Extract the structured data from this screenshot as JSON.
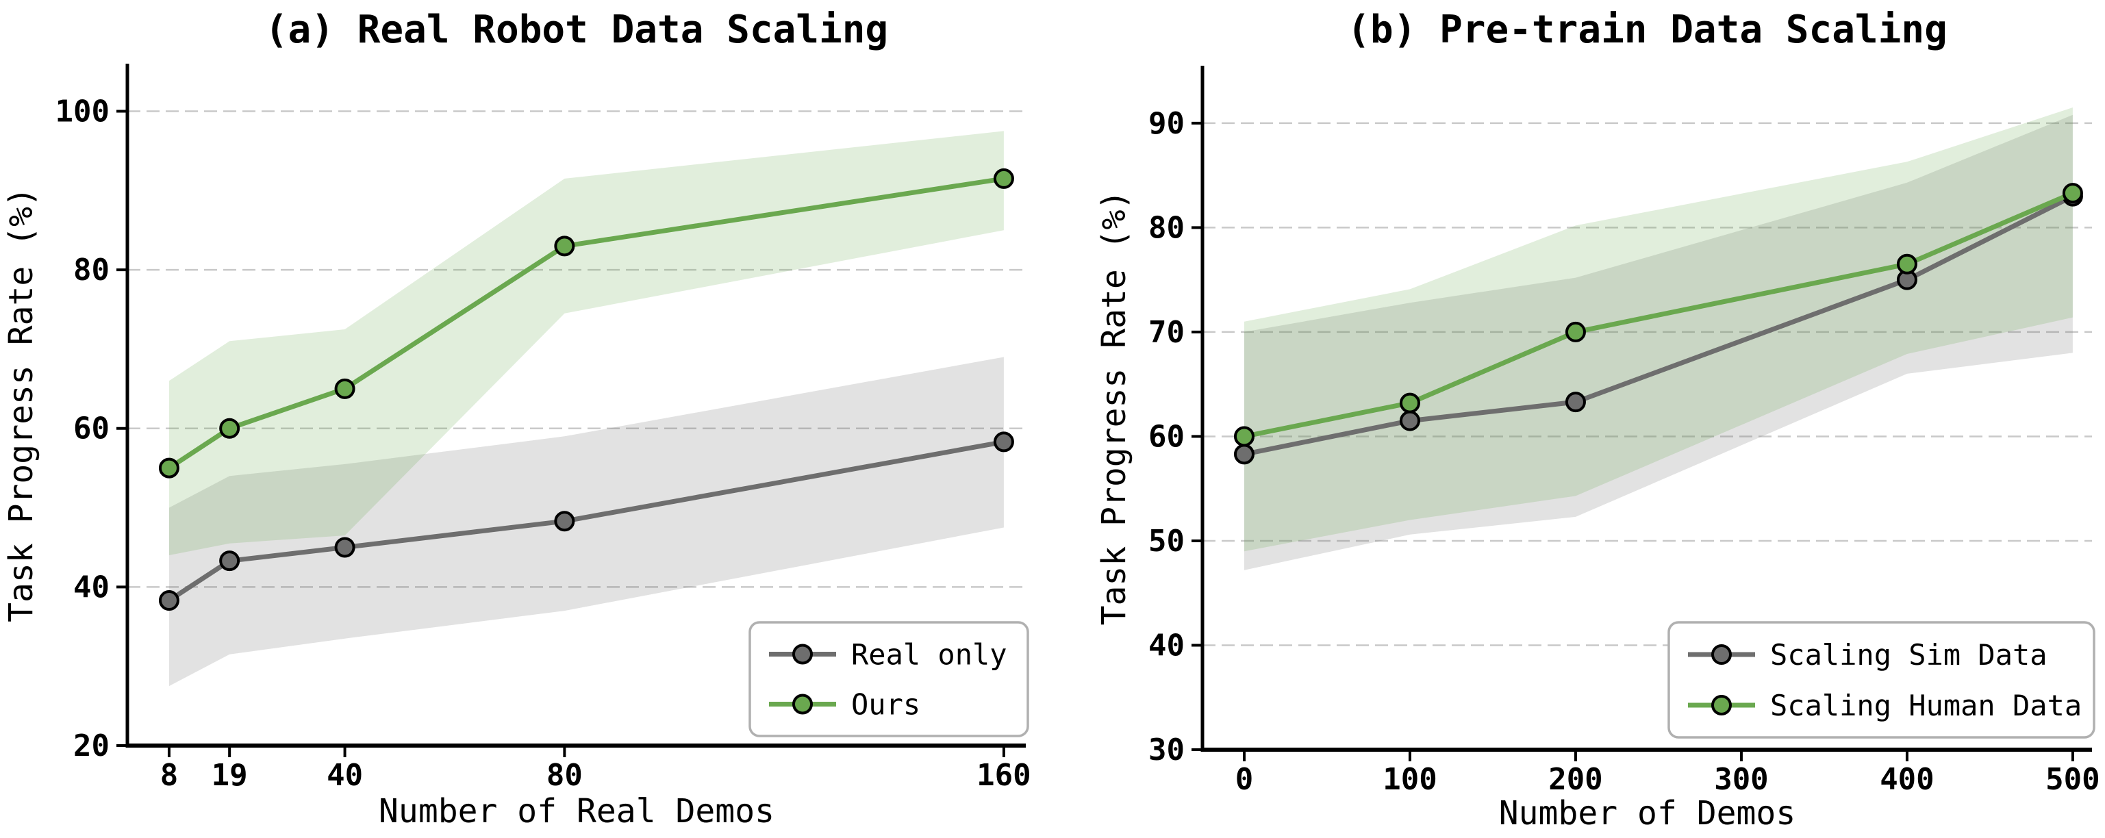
{
  "figure": {
    "background": "#ffffff",
    "grid_color": "#c9c9c9",
    "spine_color": "#000000",
    "legend_border_color": "#b0b0b0",
    "marker_edge_color": "#000000",
    "band_alpha": 0.2
  },
  "chart_data": [
    {
      "type": "line",
      "panel_label": "a",
      "title": "(a) Real Robot Data Scaling",
      "xlabel": "Number of Real Demos",
      "ylabel": "Task Progress Rate (%)",
      "x": [
        8,
        19,
        40,
        80,
        160
      ],
      "xticks": [
        8,
        19,
        40,
        80,
        160
      ],
      "yticks": [
        20,
        40,
        60,
        80,
        100
      ],
      "xlim": [
        0.4,
        164
      ],
      "ylim": [
        20,
        106
      ],
      "grid": true,
      "legend_position": "lower right",
      "series": [
        {
          "name": "Real only",
          "color": "#6e6e6e",
          "values": [
            38.3,
            43.3,
            45.0,
            48.3,
            58.3
          ],
          "band_low": [
            27.5,
            31.5,
            33.5,
            37.0,
            47.5
          ],
          "band_high": [
            50.0,
            54.0,
            55.5,
            59.0,
            69.0
          ]
        },
        {
          "name": "Ours",
          "color": "#6aa84f",
          "values": [
            55.0,
            60.0,
            65.0,
            83.0,
            91.5
          ],
          "band_low": [
            44.0,
            45.5,
            46.5,
            74.5,
            85.0
          ],
          "band_high": [
            66.0,
            71.0,
            72.5,
            91.5,
            97.5
          ]
        }
      ]
    },
    {
      "type": "line",
      "panel_label": "b",
      "title": "(b) Pre-train Data Scaling",
      "xlabel": "Number of Demos",
      "ylabel": "Task Progress Rate (%)",
      "x": [
        0,
        100,
        200,
        400,
        500
      ],
      "xticks": [
        0,
        100,
        200,
        300,
        400,
        500
      ],
      "yticks": [
        30,
        40,
        50,
        60,
        70,
        80,
        90
      ],
      "xlim": [
        -25.2,
        511.6
      ],
      "ylim": [
        30,
        95.5
      ],
      "grid": true,
      "legend_position": "lower right",
      "series": [
        {
          "name": "Scaling Sim Data",
          "color": "#6e6e6e",
          "values": [
            58.3,
            61.5,
            63.3,
            75.0,
            83.0
          ],
          "band_low": [
            47.2,
            50.6,
            52.3,
            66.0,
            68.0
          ],
          "band_high": [
            70.0,
            72.8,
            75.2,
            84.3,
            90.8
          ]
        },
        {
          "name": "Scaling Human Data",
          "color": "#6aa84f",
          "values": [
            60.0,
            63.2,
            70.0,
            76.5,
            83.3
          ],
          "band_low": [
            49.0,
            52.0,
            54.3,
            67.9,
            71.4
          ],
          "band_high": [
            71.0,
            74.1,
            80.2,
            86.3,
            91.5
          ]
        }
      ]
    }
  ]
}
